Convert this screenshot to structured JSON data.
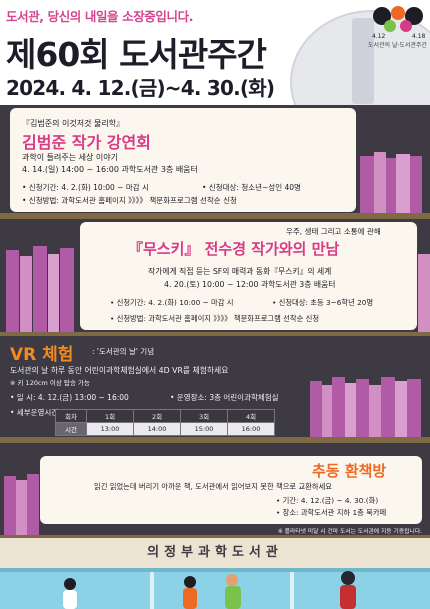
{
  "header": {
    "slogan": "도서관, 당신의 내일을 소장중입니다.",
    "title": "제60회 도서관주간",
    "dates": "2024. 4. 12.(금)~4. 30.(화)",
    "logo_left": "4.12",
    "logo_right": "4.18",
    "logo_caption": "도서관의 날·도서관주간"
  },
  "event1": {
    "subtitle": "『김범준의 이것저것 물리학』",
    "title": "김범준 작가 강연회",
    "desc": "과학이 들려주는 세상 이야기",
    "time": "4. 14.(일) 14:00 ~ 16:00  과학도서관 3층 배움터",
    "period": "• 신청기간: 4. 2.(화) 10:00 ~ 마감 시",
    "target": "• 신청대상: 청소년~성인 40명",
    "method": "• 신청방법: 과학도서관 홈페이지 》》》》 책문화프로그램 선착순 신청"
  },
  "event2": {
    "tagline": "우주, 생태 그리고 소통에 관해",
    "title": "『무스키』 전수경 작가와의 만남",
    "desc": "작가에게 직접 듣는 SF의 매력과 동화『무스키』의 세계",
    "time": "4. 20.(토) 10:00 ~ 12:00  과학도서관 3층 배움터",
    "period": "• 신청기간: 4. 2.(화) 10:00 ~ 마감 시",
    "target": "• 신청대상: 초등 3~6학년 20명",
    "method": "• 신청방법: 과학도서관 홈페이지 》》》》 책문화프로그램 선착순 신청"
  },
  "event3": {
    "title": "VR 체험",
    "subtitle": ": '도서관의 날' 기념",
    "desc": "도서관의 날 하루 동안 어린이과학체험실에서 4D VR를 체험하세요",
    "note": "※ 키 120cm 이상 탑승 가능",
    "date": "• 일    시: 4. 12.(금) 13:00 ~ 16:00",
    "place": "• 운영장소: 3층 어린이과학체험실",
    "times_label": "• 세부운영시간",
    "table_header": [
      "회차",
      "1회",
      "2회",
      "3회",
      "4회"
    ],
    "table_row": [
      "시간",
      "13:00",
      "14:00",
      "15:00",
      "16:00"
    ]
  },
  "event4": {
    "title": "추동 환책방",
    "desc": "읽긴 읽었는데 버리기 아까운 책, 도서관에서 읽어보지 못한 책으로 교환하세요",
    "period": "• 기간: 4. 12.(금) ~ 4. 30.(화)",
    "place": "• 장소: 과학도서관 지하 1층 북카페",
    "note": "※ 플라타넷 미달 시 건마 도서는 도서관에 지동 기증됩니다."
  },
  "footer": {
    "library": "의정부과학도서관"
  },
  "colors": {
    "background_band": "#3d3a44",
    "accent_pink": "#d83a86",
    "accent_orange": "#ee6a22",
    "shelf": "#806a46",
    "sky": "#8cd2e6"
  }
}
